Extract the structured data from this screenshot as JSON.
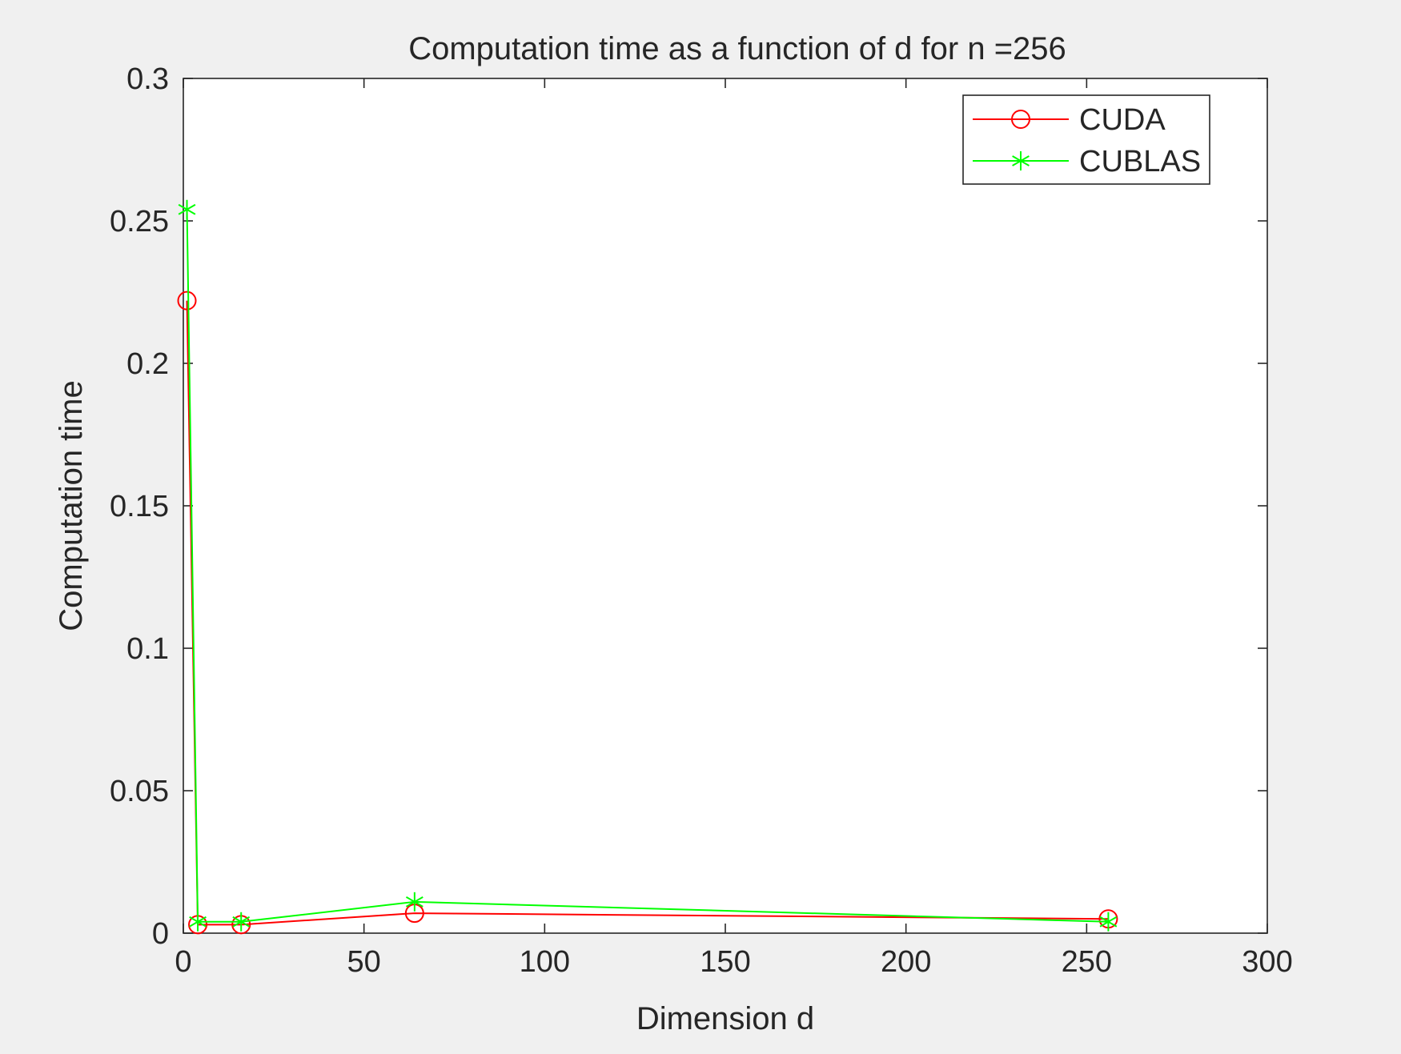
{
  "chart_data": {
    "type": "line",
    "title": "Computation time as a function of d for n =256",
    "xlabel": "Dimension d",
    "ylabel": "Computation time",
    "xlim": [
      0,
      300
    ],
    "ylim": [
      0,
      0.3
    ],
    "xticks": [
      0,
      50,
      100,
      150,
      200,
      250,
      300
    ],
    "xtick_labels": [
      "0",
      "50",
      "100",
      "150",
      "200",
      "250",
      "300"
    ],
    "yticks": [
      0,
      0.05,
      0.1,
      0.15,
      0.2,
      0.25,
      0.3
    ],
    "ytick_labels": [
      "0",
      "0.05",
      "0.1",
      "0.15",
      "0.2",
      "0.25",
      "0.3"
    ],
    "grid": false,
    "legend_position": "top-right",
    "x": [
      1,
      4,
      16,
      64,
      256
    ],
    "series": [
      {
        "name": "CUDA",
        "color": "#ff0000",
        "marker": "circle",
        "values": [
          0.222,
          0.003,
          0.003,
          0.007,
          0.005
        ]
      },
      {
        "name": "CUBLAS",
        "color": "#00ff00",
        "marker": "asterisk",
        "values": [
          0.254,
          0.004,
          0.004,
          0.011,
          0.004
        ]
      }
    ]
  }
}
